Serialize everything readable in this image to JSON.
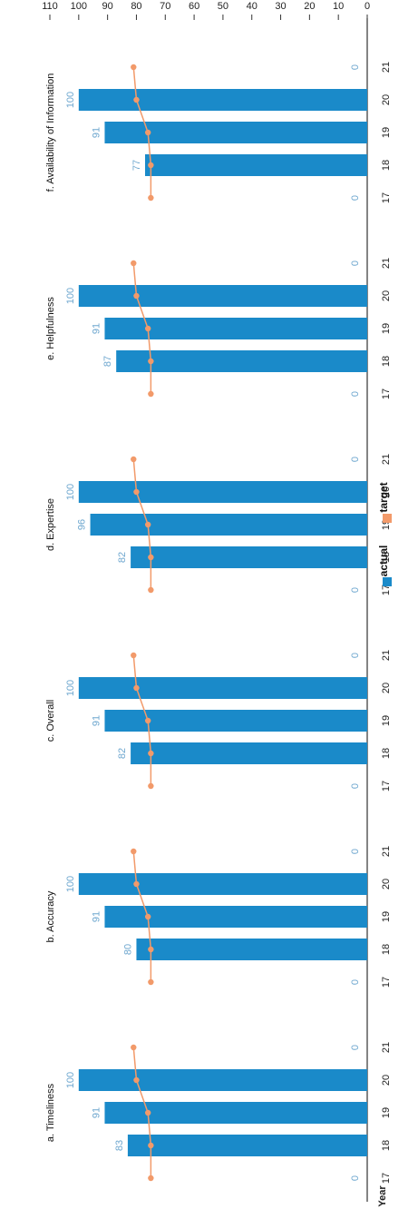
{
  "chart_data": {
    "type": "bar",
    "xlabel": "Year",
    "ylabel": "",
    "ylim": [
      0,
      110
    ],
    "yticks": [
      0,
      10,
      20,
      30,
      40,
      50,
      60,
      70,
      80,
      90,
      100,
      110
    ],
    "categories": [
      "17",
      "18",
      "19",
      "20",
      "21"
    ],
    "legend": {
      "placement": "bottom",
      "items": [
        "actual",
        "target"
      ]
    },
    "colors": {
      "actual": "#1a8ac9",
      "target": "#f29a6a",
      "data_label": "#6ea7cf"
    },
    "panels": [
      {
        "title": "a. Timeliness",
        "series": [
          {
            "name": "actual",
            "values": [
              0,
              83,
              91,
              100,
              0
            ]
          },
          {
            "name": "target",
            "values": [
              75,
              75,
              76,
              80,
              81
            ]
          }
        ]
      },
      {
        "title": "b. Accuracy",
        "series": [
          {
            "name": "actual",
            "values": [
              0,
              80,
              91,
              100,
              0
            ]
          },
          {
            "name": "target",
            "values": [
              75,
              75,
              76,
              80,
              81
            ]
          }
        ]
      },
      {
        "title": "c. Overall",
        "series": [
          {
            "name": "actual",
            "values": [
              0,
              82,
              91,
              100,
              0
            ]
          },
          {
            "name": "target",
            "values": [
              75,
              75,
              76,
              80,
              81
            ]
          }
        ]
      },
      {
        "title": "d. Expertise",
        "series": [
          {
            "name": "actual",
            "values": [
              0,
              82,
              96,
              100,
              0
            ]
          },
          {
            "name": "target",
            "values": [
              75,
              75,
              76,
              80,
              81
            ]
          }
        ]
      },
      {
        "title": "e. Helpfulness",
        "series": [
          {
            "name": "actual",
            "values": [
              0,
              87,
              91,
              100,
              0
            ]
          },
          {
            "name": "target",
            "values": [
              75,
              75,
              76,
              80,
              81
            ]
          }
        ]
      },
      {
        "title": "f. Availability of Information",
        "series": [
          {
            "name": "actual",
            "values": [
              0,
              77,
              91,
              100,
              0
            ]
          },
          {
            "name": "target",
            "values": [
              75,
              75,
              76,
              80,
              81
            ]
          }
        ]
      }
    ]
  }
}
